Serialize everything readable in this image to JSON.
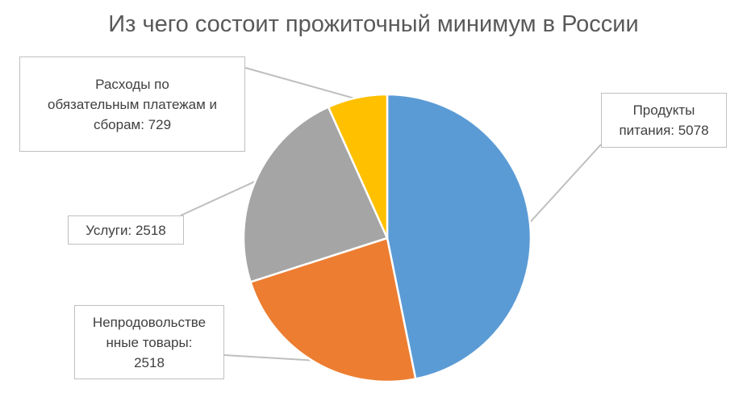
{
  "chart_data": {
    "type": "pie",
    "title": "Из чего состоит прожиточный минимум в России",
    "slices": [
      {
        "label": "Продукты питания",
        "value": 5078,
        "color": "#5b9bd5",
        "text": "Продукты питания: 5078"
      },
      {
        "label": "Непродовольственные товары",
        "value": 2518,
        "color": "#ed7d31",
        "text": "Непродовольстве нные товары: 2518"
      },
      {
        "label": "Услуги",
        "value": 2518,
        "color": "#a5a5a5",
        "text": "Услуги: 2518"
      },
      {
        "label": "Расходы по обязательным платежам и сборам",
        "value": 729,
        "color": "#ffc000",
        "text": "Расходы по обязательным платежам и сборам: 729"
      }
    ],
    "start": "12 o'clock",
    "direction": "clockwise"
  },
  "labels": {
    "food_lines": [
      "Продукты",
      "питания: 5078"
    ],
    "nonfood_lines": [
      "Непродовольстве",
      "нные товары:",
      "2518"
    ],
    "services_lines": [
      "Услуги: 2518"
    ],
    "fees_lines": [
      "Расходы по",
      "обязательным платежам и",
      "сборам: 729"
    ]
  }
}
